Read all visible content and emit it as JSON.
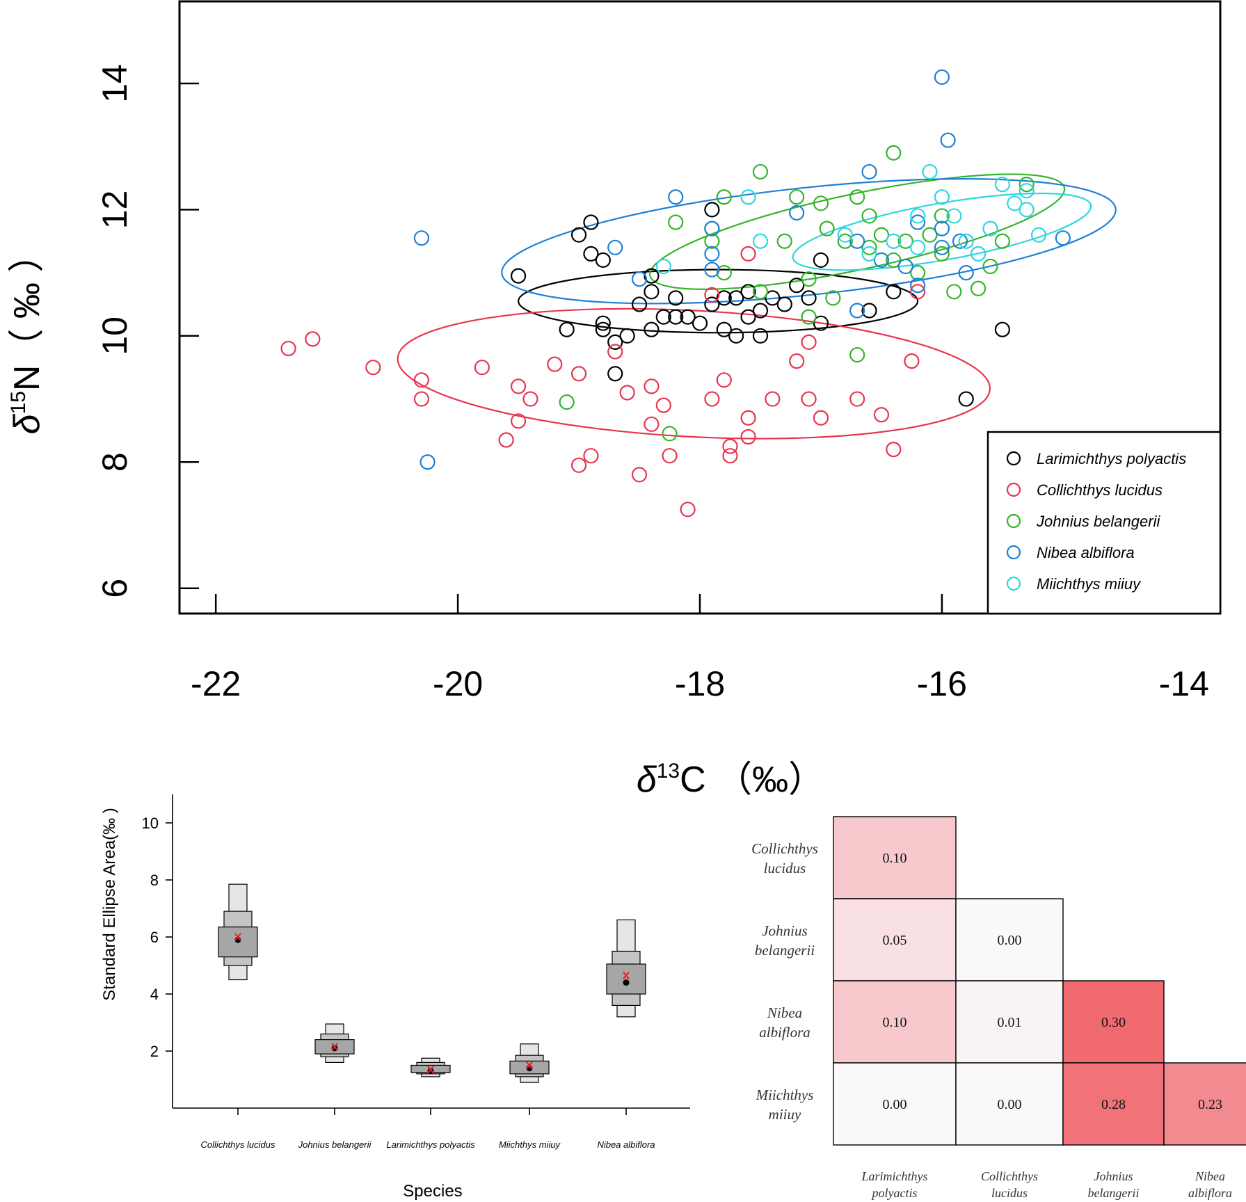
{
  "chart_data": [
    {
      "type": "scatter",
      "title": "",
      "xlabel": {
        "symbol": "δ",
        "sup": "13",
        "rest": "C （‰）"
      },
      "ylabel": {
        "symbol": "δ",
        "sup": "15",
        "rest": "N（ ‰ ）"
      },
      "xlim": [
        -22.3,
        -13.7
      ],
      "ylim": [
        5.6,
        15.3
      ],
      "xticks": [
        -22,
        -20,
        -18,
        -16,
        -14
      ],
      "yticks": [
        6,
        8,
        10,
        12,
        14
      ],
      "grid": false,
      "legend_position": "bottom-right",
      "series": [
        {
          "name": "Larimichthys polyactis",
          "color": "#000000",
          "ellipse": {
            "cx": -17.85,
            "cy": 10.55,
            "rx": 1.65,
            "ry": 0.5,
            "angle_deg": 0
          },
          "points": [
            [
              -18.9,
              11.8
            ],
            [
              -19.0,
              11.6
            ],
            [
              -18.9,
              11.3
            ],
            [
              -18.8,
              11.2
            ],
            [
              -19.5,
              10.95
            ],
            [
              -18.4,
              10.95
            ],
            [
              -18.4,
              10.7
            ],
            [
              -18.5,
              10.5
            ],
            [
              -18.3,
              10.3
            ],
            [
              -18.8,
              10.2
            ],
            [
              -18.8,
              10.1
            ],
            [
              -18.6,
              10.0
            ],
            [
              -18.7,
              9.9
            ],
            [
              -18.2,
              10.3
            ],
            [
              -18.1,
              10.3
            ],
            [
              -18.0,
              10.2
            ],
            [
              -17.9,
              10.5
            ],
            [
              -17.8,
              10.6
            ],
            [
              -17.7,
              10.6
            ],
            [
              -17.6,
              10.3
            ],
            [
              -17.5,
              10.4
            ],
            [
              -17.4,
              10.6
            ],
            [
              -17.3,
              10.5
            ],
            [
              -17.1,
              10.6
            ],
            [
              -17.0,
              10.2
            ],
            [
              -17.5,
              10.0
            ],
            [
              -17.8,
              10.1
            ],
            [
              -17.7,
              10.0
            ],
            [
              -18.4,
              10.1
            ],
            [
              -19.1,
              10.1
            ],
            [
              -18.7,
              9.4
            ],
            [
              -17.9,
              12.0
            ],
            [
              -17.0,
              11.2
            ],
            [
              -16.6,
              10.4
            ],
            [
              -16.4,
              10.7
            ],
            [
              -15.5,
              10.1
            ],
            [
              -15.8,
              9.0
            ],
            [
              -18.2,
              10.6
            ],
            [
              -17.6,
              10.7
            ],
            [
              -17.2,
              10.8
            ]
          ]
        },
        {
          "name": "Collichthys lucidus",
          "color": "#e8344e",
          "ellipse": {
            "cx": -18.05,
            "cy": 9.4,
            "rx": 2.45,
            "ry": 1.0,
            "angle_deg": 3
          },
          "points": [
            [
              -21.4,
              9.8
            ],
            [
              -21.2,
              9.95
            ],
            [
              -20.7,
              9.5
            ],
            [
              -20.3,
              9.3
            ],
            [
              -20.3,
              9.0
            ],
            [
              -19.8,
              9.5
            ],
            [
              -19.5,
              9.2
            ],
            [
              -19.5,
              8.65
            ],
            [
              -19.4,
              9.0
            ],
            [
              -19.6,
              8.35
            ],
            [
              -19.2,
              9.55
            ],
            [
              -19.0,
              9.4
            ],
            [
              -18.9,
              8.1
            ],
            [
              -19.0,
              7.95
            ],
            [
              -18.7,
              9.75
            ],
            [
              -18.6,
              9.1
            ],
            [
              -18.5,
              7.8
            ],
            [
              -18.4,
              8.6
            ],
            [
              -18.4,
              9.2
            ],
            [
              -18.3,
              8.9
            ],
            [
              -18.25,
              8.1
            ],
            [
              -18.1,
              7.25
            ],
            [
              -17.9,
              9.0
            ],
            [
              -17.8,
              9.3
            ],
            [
              -17.75,
              8.25
            ],
            [
              -17.75,
              8.1
            ],
            [
              -17.6,
              8.7
            ],
            [
              -17.6,
              8.4
            ],
            [
              -17.4,
              9.0
            ],
            [
              -17.1,
              9.0
            ],
            [
              -17.2,
              9.6
            ],
            [
              -17.1,
              9.9
            ],
            [
              -17.0,
              8.7
            ],
            [
              -16.7,
              9.0
            ],
            [
              -16.5,
              8.75
            ],
            [
              -16.4,
              8.2
            ],
            [
              -16.25,
              9.6
            ],
            [
              -16.2,
              10.7
            ],
            [
              -17.9,
              10.65
            ],
            [
              -17.6,
              11.3
            ]
          ]
        },
        {
          "name": "Johnius belangerii",
          "color": "#33b528",
          "ellipse": {
            "cx": -16.7,
            "cy": 11.65,
            "rx": 1.75,
            "ry": 0.6,
            "angle_deg": -12
          },
          "points": [
            [
              -19.1,
              8.95
            ],
            [
              -18.25,
              8.45
            ],
            [
              -18.2,
              11.8
            ],
            [
              -17.8,
              12.2
            ],
            [
              -17.9,
              11.7
            ],
            [
              -17.9,
              11.5
            ],
            [
              -17.8,
              11.0
            ],
            [
              -17.5,
              12.6
            ],
            [
              -17.2,
              12.2
            ],
            [
              -17.0,
              12.1
            ],
            [
              -16.95,
              11.7
            ],
            [
              -16.8,
              11.5
            ],
            [
              -16.7,
              12.2
            ],
            [
              -16.6,
              11.9
            ],
            [
              -16.5,
              11.6
            ],
            [
              -16.4,
              12.9
            ],
            [
              -16.3,
              11.5
            ],
            [
              -16.0,
              11.3
            ],
            [
              -16.2,
              11.0
            ],
            [
              -16.1,
              11.6
            ],
            [
              -16.0,
              11.9
            ],
            [
              -15.9,
              10.7
            ],
            [
              -15.7,
              10.75
            ],
            [
              -15.5,
              11.5
            ],
            [
              -15.3,
              12.4
            ],
            [
              -16.7,
              9.7
            ],
            [
              -17.1,
              10.3
            ],
            [
              -17.1,
              10.9
            ],
            [
              -16.9,
              10.6
            ],
            [
              -17.5,
              10.7
            ],
            [
              -17.3,
              11.5
            ],
            [
              -16.6,
              11.4
            ],
            [
              -16.4,
              11.2
            ],
            [
              -15.6,
              11.1
            ]
          ]
        },
        {
          "name": "Nibea albiflora",
          "color": "#1f80d6",
          "ellipse": {
            "cx": -17.1,
            "cy": 11.5,
            "rx": 2.55,
            "ry": 0.85,
            "angle_deg": -6
          },
          "points": [
            [
              -20.3,
              11.55
            ],
            [
              -20.25,
              8.0
            ],
            [
              -16.0,
              14.1
            ],
            [
              -15.95,
              13.1
            ],
            [
              -16.6,
              12.6
            ],
            [
              -18.2,
              12.2
            ],
            [
              -17.9,
              11.7
            ],
            [
              -17.9,
              11.3
            ],
            [
              -17.9,
              11.05
            ],
            [
              -18.5,
              10.9
            ],
            [
              -18.7,
              11.4
            ],
            [
              -17.2,
              11.95
            ],
            [
              -16.7,
              11.5
            ],
            [
              -16.7,
              10.4
            ],
            [
              -16.5,
              11.2
            ],
            [
              -16.2,
              11.8
            ],
            [
              -16.2,
              10.8
            ],
            [
              -15.85,
              11.5
            ],
            [
              -15.8,
              11.0
            ],
            [
              -15.0,
              11.55
            ],
            [
              -16.0,
              11.7
            ],
            [
              -16.3,
              11.1
            ],
            [
              -16.0,
              11.4
            ]
          ]
        },
        {
          "name": "Miichthys miiuy",
          "color": "#2dd6e0",
          "ellipse": {
            "cx": -16.0,
            "cy": 11.65,
            "rx": 1.25,
            "ry": 0.45,
            "angle_deg": -10
          },
          "points": [
            [
              -18.3,
              11.1
            ],
            [
              -17.6,
              12.2
            ],
            [
              -17.5,
              11.5
            ],
            [
              -16.8,
              11.6
            ],
            [
              -16.6,
              11.3
            ],
            [
              -16.4,
              11.5
            ],
            [
              -16.2,
              11.9
            ],
            [
              -16.1,
              12.6
            ],
            [
              -15.9,
              11.9
            ],
            [
              -15.8,
              11.5
            ],
            [
              -15.6,
              11.7
            ],
            [
              -15.5,
              12.4
            ],
            [
              -15.4,
              12.1
            ],
            [
              -15.3,
              12.0
            ],
            [
              -15.2,
              11.6
            ],
            [
              -15.3,
              12.3
            ],
            [
              -16.0,
              12.2
            ],
            [
              -16.2,
              11.4
            ],
            [
              -15.7,
              11.3
            ]
          ]
        }
      ]
    },
    {
      "type": "box",
      "ylabel": "Standard Ellipse Area(‰ )",
      "xlabel": "Species",
      "ylim": [
        0,
        11
      ],
      "yticks": [
        2,
        4,
        6,
        8,
        10
      ],
      "categories": [
        "Collichthys lucidus",
        "Johnius belangerii",
        "Larimichthys polyactis",
        "Miichthys miiuy",
        "Nibea albiflora"
      ],
      "intervals": [
        {
          "c95": [
            4.5,
            7.85
          ],
          "c75": [
            5.0,
            6.9
          ],
          "c50": [
            5.3,
            6.35
          ],
          "mode": 5.9,
          "mean": 6.0
        },
        {
          "c95": [
            1.6,
            2.95
          ],
          "c75": [
            1.8,
            2.6
          ],
          "c50": [
            1.9,
            2.4
          ],
          "mode": 2.1,
          "mean": 2.15
        },
        {
          "c95": [
            1.1,
            1.75
          ],
          "c75": [
            1.2,
            1.6
          ],
          "c50": [
            1.25,
            1.5
          ],
          "mode": 1.3,
          "mean": 1.35
        },
        {
          "c95": [
            0.9,
            2.25
          ],
          "c75": [
            1.1,
            1.85
          ],
          "c50": [
            1.2,
            1.65
          ],
          "mode": 1.4,
          "mean": 1.5
        },
        {
          "c95": [
            3.2,
            6.6
          ],
          "c75": [
            3.6,
            5.5
          ],
          "c50": [
            4.0,
            5.05
          ],
          "mode": 4.4,
          "mean": 4.65
        }
      ]
    },
    {
      "type": "heatmap",
      "rows": [
        [
          "Collichthys",
          "lucidus"
        ],
        [
          "Johnius",
          "belangerii"
        ],
        [
          "Nibea",
          "albiflora"
        ],
        [
          "Miichthys",
          "miiuy"
        ]
      ],
      "columns": [
        [
          "Larimichthys",
          "polyactis"
        ],
        [
          "Collichthys",
          "lucidus"
        ],
        [
          "Johnius",
          "belangerii"
        ],
        [
          "Nibea",
          "albiflora"
        ]
      ],
      "cells": [
        [
          {
            "col": 0,
            "value": "0.10"
          }
        ],
        [
          {
            "col": 0,
            "value": "0.05"
          },
          {
            "col": 1,
            "value": "0.00"
          }
        ],
        [
          {
            "col": 0,
            "value": "0.10"
          },
          {
            "col": 1,
            "value": "0.01"
          },
          {
            "col": 2,
            "value": "0.30"
          }
        ],
        [
          {
            "col": 0,
            "value": "0.00"
          },
          {
            "col": 1,
            "value": "0.00"
          },
          {
            "col": 2,
            "value": "0.28"
          },
          {
            "col": 3,
            "value": "0.23"
          }
        ]
      ]
    }
  ],
  "colors": {
    "axis": "#000000",
    "box_light": "#e6e6e6",
    "box_mid": "#c4c4c4",
    "box_dark": "#a6a6a6",
    "mean_marker": "#e8212a",
    "heat_high": "#f06a70",
    "heat_low": "#faf8fb"
  }
}
